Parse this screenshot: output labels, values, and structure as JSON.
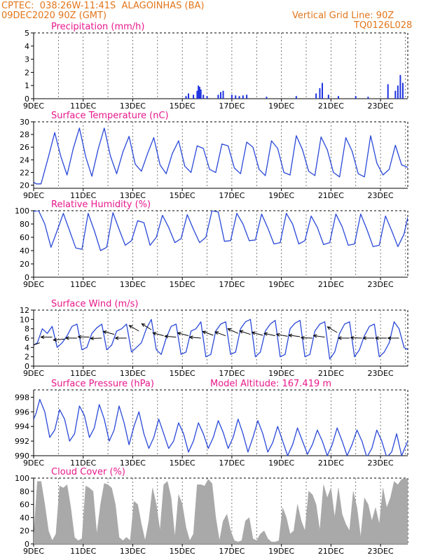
{
  "header": {
    "left_line1": "CPTEC:  038:26W-11:41S  ALAGOINHAS (BA)",
    "left_line2": "09DEC2020 90Z (GMT)",
    "right_line1": "Vertical Grid Line: 90Z",
    "right_line2": "TQ0126L028"
  },
  "colors": {
    "header": "#e2761b",
    "panel_title": "#e8188c",
    "line": "#2a49d8",
    "precip_bar": "#1f33e0",
    "cloud_fill": "#a9a9a9",
    "arrow": "#000000"
  },
  "x_axis": {
    "tick_labels": [
      "9DEC",
      "11DEC",
      "13DEC",
      "15DEC",
      "17DEC",
      "19DEC",
      "21DEC",
      "23DEC"
    ],
    "tick_days": [
      9,
      11,
      13,
      15,
      17,
      19,
      21,
      23
    ],
    "start_day": 9.0,
    "end_day": 24.1,
    "vertical_grid_lines_daily": true
  },
  "chart_data": [
    {
      "type": "bar",
      "title": "Precipitation (mm/h)",
      "ylim": [
        0,
        5
      ],
      "yticks": [
        0,
        1,
        2,
        3,
        4,
        5
      ],
      "x_day": [
        15.15,
        15.25,
        15.45,
        15.6,
        15.65,
        15.7,
        15.75,
        15.85,
        16.0,
        16.45,
        16.55,
        16.65,
        17.0,
        17.15,
        17.3,
        17.45,
        17.6,
        18.4,
        19.6,
        20.4,
        20.55,
        20.65,
        20.9,
        21.3,
        22.0,
        22.5,
        23.3,
        23.6,
        23.7,
        23.8,
        23.9
      ],
      "values": [
        0.2,
        0.4,
        0.3,
        0.6,
        1.0,
        0.9,
        0.7,
        0.3,
        0.2,
        0.3,
        0.5,
        0.6,
        0.3,
        0.25,
        0.2,
        0.25,
        0.3,
        0.15,
        0.2,
        0.4,
        0.8,
        1.2,
        0.3,
        0.2,
        0.2,
        0.15,
        1.1,
        0.6,
        1.0,
        1.8,
        1.2
      ]
    },
    {
      "type": "line",
      "title": "Surface Temperature (nC)",
      "ylim": [
        19.5,
        30
      ],
      "yticks": [
        20,
        22,
        24,
        26,
        28,
        30
      ],
      "x_day": [
        9.0,
        9.1,
        9.3,
        9.6,
        9.85,
        10.1,
        10.35,
        10.6,
        10.85,
        11.1,
        11.35,
        11.6,
        11.85,
        12.1,
        12.35,
        12.6,
        12.85,
        13.1,
        13.35,
        13.6,
        13.85,
        14.1,
        14.35,
        14.6,
        14.85,
        15.1,
        15.35,
        15.6,
        15.85,
        16.1,
        16.35,
        16.6,
        16.85,
        17.1,
        17.35,
        17.6,
        17.85,
        18.1,
        18.35,
        18.6,
        18.85,
        19.1,
        19.35,
        19.6,
        19.85,
        20.1,
        20.35,
        20.6,
        20.85,
        21.1,
        21.35,
        21.6,
        21.85,
        22.1,
        22.35,
        22.6,
        22.85,
        23.1,
        23.35,
        23.6,
        23.85,
        24.1
      ],
      "values": [
        20.5,
        20.2,
        20.2,
        24.5,
        28.3,
        24.5,
        21.6,
        25.8,
        29.0,
        24.5,
        21.4,
        25.6,
        29.0,
        24.6,
        21.8,
        25.2,
        27.7,
        23.3,
        22.2,
        25.0,
        27.5,
        23.2,
        21.8,
        25.0,
        27.0,
        23.0,
        22.0,
        26.2,
        25.8,
        22.5,
        22.0,
        26.5,
        26.2,
        22.7,
        21.8,
        26.8,
        26.0,
        22.5,
        21.5,
        27.0,
        25.8,
        22.0,
        21.6,
        27.8,
        25.6,
        22.2,
        21.5,
        27.6,
        25.6,
        22.0,
        21.3,
        27.5,
        25.4,
        21.8,
        21.3,
        27.8,
        23.5,
        21.6,
        22.5,
        26.3,
        23.2,
        22.8
      ]
    },
    {
      "type": "line",
      "title": "Relative Humidity (%)",
      "ylim": [
        0,
        100
      ],
      "yticks": [
        0,
        20,
        40,
        60,
        80,
        100
      ],
      "x_day": [
        9.0,
        9.2,
        9.45,
        9.7,
        9.95,
        10.2,
        10.45,
        10.7,
        10.95,
        11.2,
        11.45,
        11.7,
        11.95,
        12.2,
        12.45,
        12.7,
        12.95,
        13.2,
        13.45,
        13.7,
        13.95,
        14.2,
        14.45,
        14.7,
        14.95,
        15.2,
        15.45,
        15.7,
        15.95,
        16.2,
        16.45,
        16.7,
        16.95,
        17.2,
        17.45,
        17.7,
        17.95,
        18.2,
        18.45,
        18.7,
        18.95,
        19.2,
        19.45,
        19.7,
        19.95,
        20.2,
        20.45,
        20.7,
        20.95,
        21.2,
        21.45,
        21.7,
        21.95,
        22.2,
        22.45,
        22.7,
        22.95,
        23.2,
        23.45,
        23.7,
        23.95,
        24.1
      ],
      "values": [
        99,
        100,
        80,
        45,
        70,
        96,
        70,
        44,
        42,
        96,
        70,
        40,
        45,
        97,
        72,
        48,
        55,
        85,
        82,
        48,
        60,
        93,
        75,
        52,
        58,
        94,
        72,
        52,
        60,
        100,
        98,
        54,
        55,
        96,
        80,
        55,
        56,
        95,
        74,
        50,
        52,
        96,
        80,
        50,
        55,
        92,
        75,
        49,
        52,
        95,
        76,
        48,
        50,
        95,
        72,
        46,
        48,
        92,
        70,
        46,
        65,
        90
      ]
    },
    {
      "type": "line",
      "title": "Surface Wind (m/s)",
      "ylim": [
        0,
        12
      ],
      "yticks": [
        0,
        2,
        4,
        6,
        8,
        10,
        12
      ],
      "x_day": [
        9.0,
        9.15,
        9.35,
        9.55,
        9.75,
        9.95,
        10.15,
        10.35,
        10.55,
        10.75,
        10.95,
        11.15,
        11.35,
        11.55,
        11.75,
        11.95,
        12.15,
        12.35,
        12.55,
        12.75,
        12.95,
        13.15,
        13.35,
        13.55,
        13.75,
        13.95,
        14.15,
        14.35,
        14.55,
        14.75,
        14.95,
        15.15,
        15.35,
        15.55,
        15.75,
        15.95,
        16.15,
        16.35,
        16.55,
        16.75,
        16.95,
        17.15,
        17.35,
        17.55,
        17.75,
        17.95,
        18.15,
        18.35,
        18.55,
        18.75,
        18.95,
        19.15,
        19.35,
        19.55,
        19.75,
        19.95,
        20.15,
        20.35,
        20.55,
        20.75,
        20.95,
        21.15,
        21.35,
        21.55,
        21.75,
        21.95,
        22.15,
        22.35,
        22.55,
        22.75,
        22.95,
        23.15,
        23.35,
        23.55,
        23.75,
        23.95,
        24.1
      ],
      "values": [
        4.5,
        5.0,
        8.0,
        7.0,
        8.5,
        4.0,
        5.0,
        6.5,
        8.5,
        9.0,
        3.5,
        4.0,
        7.0,
        8.2,
        9.0,
        3.5,
        4.5,
        7.5,
        8.0,
        9.0,
        3.0,
        4.0,
        5.0,
        8.0,
        10.0,
        3.5,
        2.5,
        6.0,
        8.5,
        9.0,
        2.5,
        3.0,
        7.5,
        8.0,
        9.5,
        2.0,
        2.5,
        7.5,
        9.0,
        9.5,
        2.5,
        3.0,
        8.0,
        9.5,
        10.0,
        2.0,
        3.0,
        7.5,
        9.0,
        9.8,
        2.0,
        2.5,
        8.0,
        9.2,
        9.8,
        2.0,
        2.5,
        7.5,
        9.0,
        9.5,
        1.5,
        3.0,
        7.0,
        9.0,
        9.5,
        2.0,
        3.5,
        6.5,
        8.5,
        9.0,
        2.0,
        3.0,
        5.0,
        9.5,
        8.0,
        4.0,
        3.5
      ],
      "wind_arrows": [
        {
          "day": 9.25,
          "speed": 5.0,
          "dir_deg": 200
        },
        {
          "day": 9.75,
          "speed": 6.2,
          "dir_deg": 180
        },
        {
          "day": 10.25,
          "speed": 5.8,
          "dir_deg": 185
        },
        {
          "day": 10.75,
          "speed": 6.0,
          "dir_deg": 180
        },
        {
          "day": 11.25,
          "speed": 6.2,
          "dir_deg": 178
        },
        {
          "day": 11.75,
          "speed": 6.0,
          "dir_deg": 182
        },
        {
          "day": 12.25,
          "speed": 6.8,
          "dir_deg": 165
        },
        {
          "day": 12.75,
          "speed": 6.0,
          "dir_deg": 180
        },
        {
          "day": 13.25,
          "speed": 7.5,
          "dir_deg": 150
        },
        {
          "day": 13.75,
          "speed": 7.8,
          "dir_deg": 148
        },
        {
          "day": 14.25,
          "speed": 6.5,
          "dir_deg": 165
        },
        {
          "day": 14.75,
          "speed": 6.2,
          "dir_deg": 175
        },
        {
          "day": 15.25,
          "speed": 6.5,
          "dir_deg": 165
        },
        {
          "day": 15.75,
          "speed": 6.0,
          "dir_deg": 175
        },
        {
          "day": 16.25,
          "speed": 6.6,
          "dir_deg": 160
        },
        {
          "day": 16.75,
          "speed": 6.5,
          "dir_deg": 160
        },
        {
          "day": 17.25,
          "speed": 7.0,
          "dir_deg": 155
        },
        {
          "day": 17.75,
          "speed": 6.8,
          "dir_deg": 162
        },
        {
          "day": 18.25,
          "speed": 6.6,
          "dir_deg": 165
        },
        {
          "day": 18.75,
          "speed": 6.5,
          "dir_deg": 168
        },
        {
          "day": 19.25,
          "speed": 6.4,
          "dir_deg": 170
        },
        {
          "day": 19.75,
          "speed": 6.3,
          "dir_deg": 172
        },
        {
          "day": 20.25,
          "speed": 6.0,
          "dir_deg": 178
        },
        {
          "day": 20.75,
          "speed": 6.2,
          "dir_deg": 172
        },
        {
          "day": 21.25,
          "speed": 7.2,
          "dir_deg": 150
        },
        {
          "day": 21.75,
          "speed": 6.0,
          "dir_deg": 180
        },
        {
          "day": 22.25,
          "speed": 6.0,
          "dir_deg": 178
        },
        {
          "day": 22.75,
          "speed": 6.0,
          "dir_deg": 180
        },
        {
          "day": 23.25,
          "speed": 6.0,
          "dir_deg": 180
        },
        {
          "day": 23.75,
          "speed": 6.0,
          "dir_deg": 180
        }
      ]
    },
    {
      "type": "line",
      "title": "Surface Pressure (hPa)",
      "subtitle": "Model Altitude: 167.419 m",
      "ylim": [
        990,
        999
      ],
      "yticks": [
        990,
        992,
        994,
        996,
        998
      ],
      "x_day": [
        9.0,
        9.1,
        9.25,
        9.45,
        9.65,
        9.85,
        10.05,
        10.25,
        10.45,
        10.65,
        10.85,
        11.05,
        11.25,
        11.45,
        11.65,
        11.85,
        12.05,
        12.25,
        12.45,
        12.65,
        12.85,
        13.05,
        13.25,
        13.45,
        13.65,
        13.85,
        14.05,
        14.25,
        14.45,
        14.65,
        14.85,
        15.05,
        15.25,
        15.45,
        15.65,
        15.85,
        16.05,
        16.25,
        16.45,
        16.65,
        16.85,
        17.05,
        17.25,
        17.45,
        17.65,
        17.85,
        18.05,
        18.25,
        18.45,
        18.65,
        18.85,
        19.05,
        19.25,
        19.45,
        19.65,
        19.85,
        20.05,
        20.25,
        20.45,
        20.65,
        20.85,
        21.05,
        21.25,
        21.45,
        21.65,
        21.85,
        22.05,
        22.25,
        22.45,
        22.65,
        22.85,
        23.05,
        23.25,
        23.45,
        23.65,
        23.85,
        24.1
      ],
      "values": [
        995.0,
        995.8,
        997.7,
        996.0,
        992.5,
        993.5,
        996.3,
        995.0,
        992.0,
        993.0,
        996.8,
        995.5,
        992.5,
        993.8,
        997.0,
        995.0,
        992.0,
        993.5,
        996.8,
        994.5,
        991.5,
        994.0,
        996.0,
        993.0,
        991.0,
        992.5,
        995.0,
        993.0,
        991.0,
        992.0,
        994.5,
        993.0,
        990.5,
        992.0,
        994.5,
        993.0,
        991.0,
        992.5,
        994.8,
        993.2,
        991.0,
        992.5,
        995.0,
        993.0,
        990.5,
        992.5,
        994.8,
        993.0,
        990.5,
        991.8,
        994.0,
        992.0,
        990.0,
        991.5,
        993.8,
        992.0,
        990.2,
        991.5,
        993.5,
        992.0,
        990.0,
        991.5,
        993.8,
        992.0,
        990.0,
        991.5,
        993.5,
        992.0,
        989.8,
        991.0,
        993.5,
        992.0,
        989.8,
        990.5,
        993.0,
        990.0,
        992.0
      ]
    },
    {
      "type": "area",
      "title": "Cloud Cover (%)",
      "ylim": [
        0,
        100
      ],
      "yticks": [
        0,
        20,
        40,
        60,
        80,
        100
      ],
      "x_day": [
        9.0,
        9.15,
        9.3,
        9.45,
        9.6,
        9.75,
        9.9,
        10.05,
        10.2,
        10.35,
        10.5,
        10.65,
        10.8,
        10.95,
        11.1,
        11.25,
        11.4,
        11.55,
        11.7,
        11.85,
        12.0,
        12.15,
        12.3,
        12.45,
        12.6,
        12.75,
        12.9,
        13.05,
        13.2,
        13.35,
        13.5,
        13.65,
        13.8,
        13.95,
        14.1,
        14.25,
        14.4,
        14.55,
        14.7,
        14.85,
        15.0,
        15.15,
        15.3,
        15.45,
        15.6,
        15.75,
        15.9,
        16.05,
        16.2,
        16.35,
        16.5,
        16.65,
        16.8,
        16.95,
        17.1,
        17.25,
        17.4,
        17.55,
        17.7,
        17.85,
        18.0,
        18.15,
        18.3,
        18.45,
        18.6,
        18.75,
        18.9,
        19.05,
        19.2,
        19.35,
        19.5,
        19.65,
        19.8,
        19.95,
        20.1,
        20.25,
        20.4,
        20.55,
        20.7,
        20.85,
        21.0,
        21.15,
        21.3,
        21.45,
        21.6,
        21.75,
        21.9,
        22.05,
        22.2,
        22.35,
        22.5,
        22.65,
        22.8,
        22.95,
        23.1,
        23.25,
        23.4,
        23.55,
        23.7,
        23.85,
        24.0,
        24.1
      ],
      "values": [
        10,
        95,
        95,
        60,
        20,
        5,
        15,
        88,
        85,
        90,
        55,
        10,
        5,
        8,
        88,
        85,
        80,
        15,
        60,
        92,
        90,
        85,
        60,
        10,
        5,
        10,
        5,
        65,
        60,
        30,
        5,
        35,
        85,
        60,
        20,
        90,
        95,
        70,
        10,
        75,
        60,
        25,
        5,
        15,
        90,
        90,
        88,
        98,
        92,
        40,
        5,
        35,
        45,
        20,
        5,
        3,
        5,
        35,
        40,
        8,
        5,
        15,
        20,
        8,
        3,
        3,
        5,
        55,
        40,
        15,
        20,
        60,
        35,
        20,
        80,
        75,
        60,
        20,
        90,
        70,
        85,
        40,
        85,
        45,
        30,
        20,
        80,
        55,
        10,
        70,
        60,
        35,
        55,
        30,
        85,
        55,
        70,
        95,
        90,
        98,
        100,
        98
      ]
    }
  ]
}
